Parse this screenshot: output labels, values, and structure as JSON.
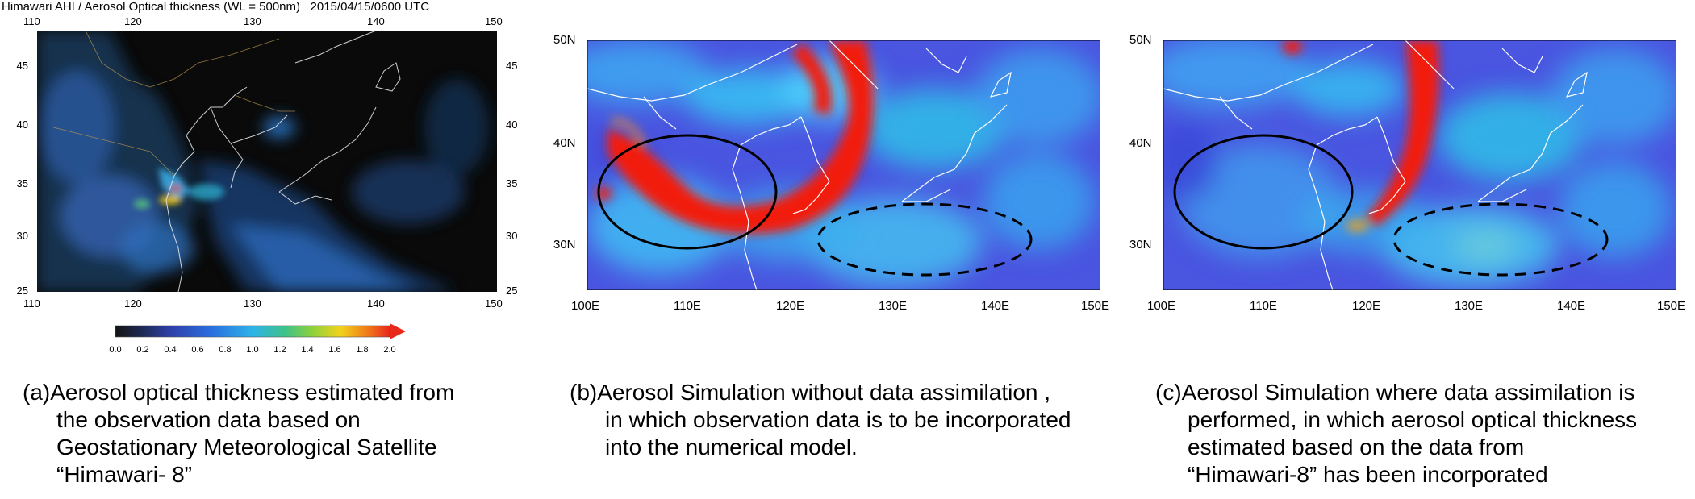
{
  "header": {
    "source": "Himawari AHI",
    "separator": "/",
    "product": "Aerosol Optical thickness (WL = 500nm)",
    "timestamp": "2015/04/15/0600 UTC"
  },
  "panel_a": {
    "lon_ticks_top": [
      "110",
      "120",
      "130",
      "140",
      "150"
    ],
    "lon_ticks_bottom": [
      "110",
      "120",
      "130",
      "140",
      "150"
    ],
    "lat_ticks_left": [
      "45",
      "40",
      "35",
      "30",
      "25"
    ],
    "lat_ticks_right": [
      "45",
      "40",
      "35",
      "30",
      "25"
    ],
    "colorbar": {
      "ticks": [
        "0.0",
        "0.2",
        "0.4",
        "0.6",
        "0.8",
        "1.0",
        "1.2",
        "1.4",
        "1.6",
        "1.8",
        "2.0"
      ],
      "min": 0.0,
      "max": 2.0
    },
    "caption": {
      "line1": "(a)Aerosol optical thickness estimated from",
      "line2": "the observation data based on",
      "line3": "Geostationary Meteorological Satellite",
      "line4": "“Himawari- 8”"
    }
  },
  "panel_b": {
    "lat_ticks": [
      "50N",
      "40N",
      "30N"
    ],
    "lon_ticks": [
      "100E",
      "110E",
      "120E",
      "130E",
      "140E",
      "150E"
    ],
    "caption": {
      "line1": "(b)Aerosol Simulation without data assimilation ,",
      "line2": "in which observation data is to be incorporated",
      "line3": "into the numerical model."
    }
  },
  "panel_c": {
    "lat_ticks": [
      "50N",
      "40N",
      "30N"
    ],
    "lon_ticks": [
      "100E",
      "110E",
      "120E",
      "130E",
      "140E",
      "150E"
    ],
    "caption": {
      "line1": "(c)Aerosol Simulation where data assimilation is",
      "line2": "performed, in which aerosol optical thickness",
      "line3": "estimated based on the data from",
      "line4": "“Himawari-8” has been incorporated"
    }
  },
  "colors": {
    "map_background_dark": "#0a0a0a",
    "model_low_blue": "#4a55e0",
    "model_mid_cyan": "#39b7f0",
    "model_high_red": "#f21e10",
    "coastline_white": "#ffffff"
  }
}
